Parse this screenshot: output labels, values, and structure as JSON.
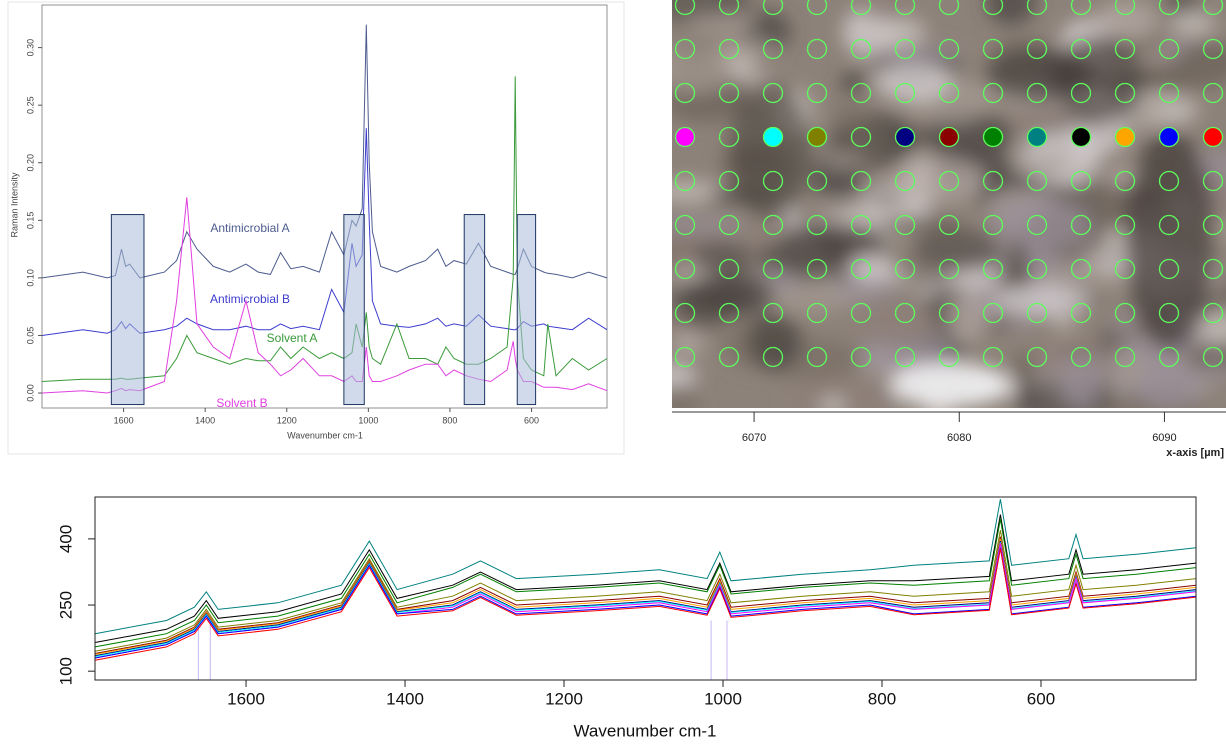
{
  "chart_data": [
    {
      "type": "line",
      "ylabel": "Raman Intensity",
      "xlabel": "Wavenumber cm-1",
      "xlim": [
        1800,
        415
      ],
      "ylim": [
        -0.013,
        0.337
      ],
      "xticks": [
        1600,
        1400,
        1200,
        1000,
        800,
        600
      ],
      "yticks": [
        {
          "value": 0,
          "label": "0.00"
        },
        {
          "value": 0.05,
          "label": "0.05"
        },
        {
          "value": 0.1,
          "label": "0.10"
        },
        {
          "value": 0.15,
          "label": "0.15"
        },
        {
          "value": 0.2,
          "label": "0.20"
        },
        {
          "value": 0.25,
          "label": "0.25"
        },
        {
          "value": 0.3,
          "label": "0.30"
        }
      ],
      "x": [
        1800,
        1700,
        1640,
        1620,
        1605,
        1595,
        1585,
        1560,
        1500,
        1470,
        1445,
        1420,
        1380,
        1340,
        1300,
        1270,
        1240,
        1215,
        1190,
        1160,
        1120,
        1090,
        1060,
        1040,
        1030,
        1015,
        1005,
        998,
        990,
        970,
        930,
        900,
        860,
        830,
        810,
        790,
        760,
        730,
        700,
        660,
        645,
        640,
        635,
        620,
        600,
        570,
        560,
        540,
        500,
        460,
        415
      ],
      "series": [
        {
          "name": "Antimicrobial A",
          "color": "#4d5c8f",
          "values": [
            0.1,
            0.105,
            0.1,
            0.102,
            0.125,
            0.11,
            0.112,
            0.1,
            0.105,
            0.115,
            0.14,
            0.125,
            0.11,
            0.105,
            0.112,
            0.105,
            0.103,
            0.122,
            0.108,
            0.11,
            0.105,
            0.14,
            0.12,
            0.15,
            0.145,
            0.16,
            0.32,
            0.2,
            0.14,
            0.11,
            0.105,
            0.11,
            0.115,
            0.125,
            0.11,
            0.115,
            0.112,
            0.13,
            0.11,
            0.105,
            0.103,
            0.103,
            0.108,
            0.125,
            0.11,
            0.105,
            0.104,
            0.103,
            0.1,
            0.105,
            0.1
          ]
        },
        {
          "name": "Antimicrobial B",
          "color": "#3c3ccf",
          "values": [
            0.05,
            0.055,
            0.052,
            0.055,
            0.062,
            0.056,
            0.06,
            0.052,
            0.055,
            0.058,
            0.065,
            0.06,
            0.055,
            0.055,
            0.058,
            0.055,
            0.055,
            0.06,
            0.056,
            0.058,
            0.055,
            0.09,
            0.07,
            0.13,
            0.11,
            0.12,
            0.23,
            0.15,
            0.08,
            0.06,
            0.058,
            0.057,
            0.06,
            0.065,
            0.058,
            0.06,
            0.058,
            0.068,
            0.058,
            0.056,
            0.055,
            0.055,
            0.056,
            0.062,
            0.058,
            0.06,
            0.058,
            0.057,
            0.055,
            0.065,
            0.055
          ]
        },
        {
          "name": "Solvent A",
          "color": "#3a9a3a",
          "values": [
            0.01,
            0.012,
            0.012,
            0.012,
            0.013,
            0.012,
            0.012,
            0.013,
            0.015,
            0.03,
            0.05,
            0.035,
            0.03,
            0.025,
            0.03,
            0.028,
            0.028,
            0.04,
            0.03,
            0.04,
            0.03,
            0.035,
            0.03,
            0.035,
            0.06,
            0.04,
            0.07,
            0.04,
            0.03,
            0.025,
            0.06,
            0.03,
            0.03,
            0.025,
            0.04,
            0.03,
            0.025,
            0.025,
            0.03,
            0.04,
            0.1,
            0.275,
            0.1,
            0.03,
            0.02,
            0.015,
            0.06,
            0.015,
            0.03,
            0.02,
            0.03
          ]
        },
        {
          "name": "Solvent B",
          "color": "#e040e0",
          "values": [
            0,
            0.002,
            0,
            0.002,
            0.004,
            0.002,
            0.003,
            0.002,
            0.01,
            0.08,
            0.17,
            0.06,
            0.04,
            0.03,
            0.08,
            0.035,
            0.025,
            0.015,
            0.02,
            0.03,
            0.015,
            0.015,
            0.01,
            0.015,
            0.01,
            0.01,
            0.04,
            0.015,
            0.01,
            0.01,
            0.015,
            0.02,
            0.025,
            0.025,
            0.015,
            0.02,
            0.015,
            0.012,
            0.01,
            0.02,
            0.045,
            0.03,
            0.02,
            0.01,
            0.01,
            0.005,
            0.005,
            0.005,
            0.003,
            0.008,
            0.002
          ]
        }
      ],
      "highlight_bands": [
        [
          1630,
          1550
        ],
        [
          1060,
          1010
        ],
        [
          765,
          715
        ],
        [
          635,
          590
        ]
      ],
      "highlight_range": [
        -0.01,
        0.155
      ]
    },
    {
      "type": "image",
      "xlabel": "x-axis [µm]",
      "xlim": [
        6066,
        6093
      ],
      "xticks": [
        6070,
        6080,
        6090
      ],
      "selected_colors": [
        "#ff00ff",
        null,
        "#00ffff",
        "#808000",
        null,
        "#000080",
        "#8b0000",
        "#008000",
        "#008080",
        "#000000",
        "#ffa500",
        "#0000ff",
        "#ff0000"
      ]
    },
    {
      "type": "line",
      "xlabel": "Wavenumber cm-1",
      "xlim": [
        1790,
        405
      ],
      "ylim": [
        80,
        495
      ],
      "xticks": [
        1600,
        1400,
        1200,
        1000,
        800,
        600
      ],
      "yticks": [
        100,
        250,
        400
      ],
      "marker_lines": [
        1660,
        1645,
        1015,
        995
      ],
      "marker_ymax": 215,
      "x": [
        1790,
        1700,
        1665,
        1650,
        1635,
        1560,
        1480,
        1445,
        1410,
        1340,
        1305,
        1260,
        1160,
        1080,
        1020,
        1004,
        990,
        900,
        815,
        760,
        665,
        651,
        637,
        565,
        556,
        547,
        480,
        405
      ],
      "series": [
        {
          "color": "#008080",
          "values": [
            185,
            215,
            245,
            280,
            240,
            255,
            295,
            395,
            285,
            320,
            350,
            310,
            320,
            330,
            310,
            370,
            305,
            320,
            330,
            340,
            350,
            490,
            340,
            355,
            410,
            355,
            365,
            380
          ]
        },
        {
          "color": "#000000",
          "values": [
            165,
            195,
            225,
            260,
            220,
            235,
            275,
            375,
            265,
            295,
            325,
            285,
            295,
            305,
            285,
            345,
            280,
            295,
            305,
            305,
            315,
            455,
            305,
            320,
            375,
            320,
            330,
            345
          ]
        },
        {
          "color": "#008000",
          "values": [
            155,
            185,
            215,
            250,
            210,
            225,
            265,
            365,
            255,
            290,
            320,
            280,
            290,
            300,
            280,
            340,
            275,
            290,
            300,
            295,
            305,
            445,
            295,
            310,
            365,
            310,
            320,
            335
          ]
        },
        {
          "color": "#808000",
          "values": [
            145,
            175,
            205,
            240,
            200,
            215,
            255,
            355,
            245,
            270,
            300,
            260,
            270,
            280,
            260,
            320,
            255,
            270,
            280,
            270,
            280,
            420,
            270,
            285,
            340,
            285,
            295,
            310
          ]
        },
        {
          "color": "#8b0000",
          "values": [
            140,
            170,
            200,
            235,
            195,
            210,
            250,
            350,
            240,
            260,
            290,
            250,
            260,
            270,
            250,
            310,
            245,
            260,
            270,
            255,
            265,
            405,
            255,
            270,
            325,
            270,
            280,
            295
          ]
        },
        {
          "color": "#ffa500",
          "values": [
            138,
            168,
            198,
            233,
            193,
            208,
            248,
            348,
            238,
            255,
            285,
            245,
            255,
            265,
            245,
            305,
            240,
            255,
            265,
            250,
            260,
            400,
            250,
            265,
            320,
            265,
            275,
            290
          ]
        },
        {
          "color": "#000080",
          "values": [
            135,
            165,
            195,
            230,
            190,
            205,
            245,
            345,
            235,
            250,
            280,
            240,
            250,
            260,
            240,
            300,
            235,
            250,
            260,
            245,
            255,
            395,
            245,
            260,
            315,
            260,
            270,
            285
          ]
        },
        {
          "color": "#00ffff",
          "values": [
            133,
            163,
            193,
            228,
            188,
            203,
            243,
            343,
            233,
            248,
            278,
            238,
            248,
            258,
            238,
            298,
            233,
            248,
            258,
            242,
            252,
            392,
            242,
            257,
            312,
            257,
            267,
            282
          ]
        },
        {
          "color": "#ff00ff",
          "values": [
            130,
            160,
            190,
            225,
            185,
            200,
            240,
            340,
            230,
            245,
            275,
            235,
            245,
            255,
            235,
            295,
            230,
            245,
            255,
            240,
            250,
            390,
            240,
            255,
            310,
            255,
            265,
            280
          ]
        },
        {
          "color": "#0000ff",
          "values": [
            130,
            160,
            190,
            225,
            185,
            200,
            240,
            340,
            230,
            240,
            270,
            230,
            240,
            250,
            230,
            290,
            225,
            240,
            250,
            230,
            240,
            380,
            230,
            245,
            300,
            245,
            255,
            270
          ]
        },
        {
          "color": "#ff0000",
          "values": [
            125,
            155,
            185,
            220,
            180,
            195,
            235,
            335,
            225,
            237,
            267,
            227,
            237,
            247,
            227,
            287,
            222,
            237,
            247,
            228,
            238,
            378,
            228,
            243,
            298,
            243,
            253,
            268
          ]
        }
      ]
    }
  ]
}
